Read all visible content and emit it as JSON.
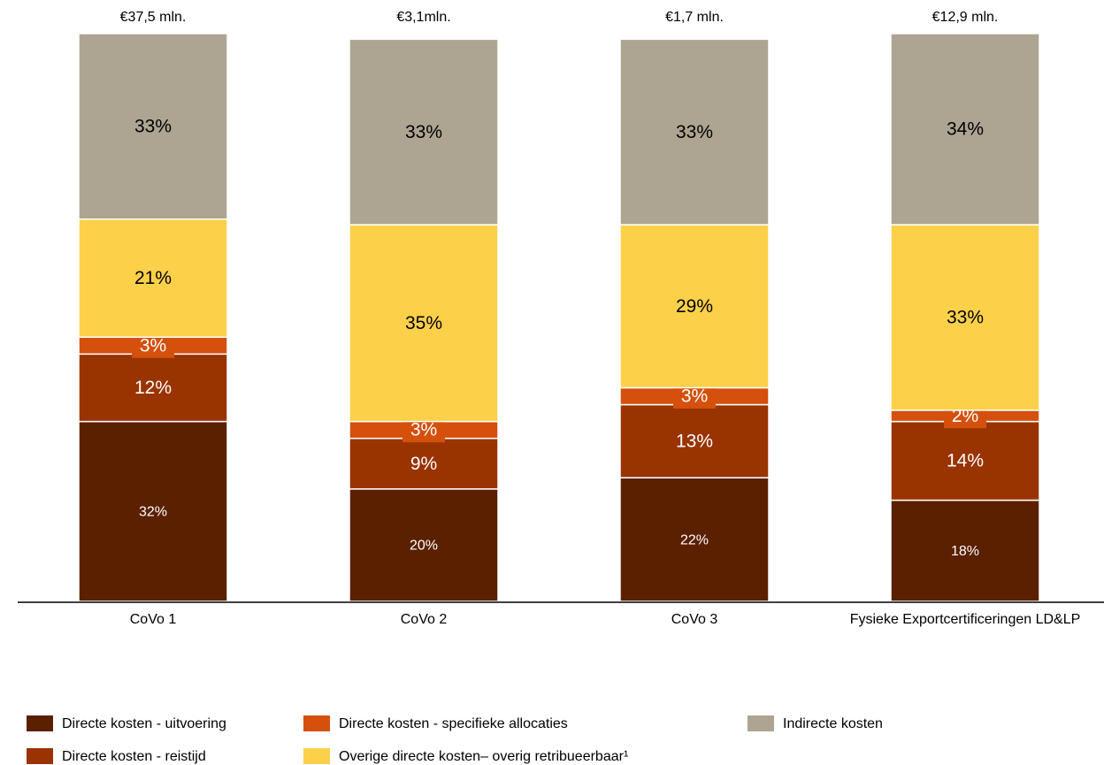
{
  "chart_data": {
    "type": "stacked_bar",
    "categories": [
      "CoVo 1",
      "CoVo 2",
      "CoVo 3",
      "Fysieke Exportcertificeringen LD&LP"
    ],
    "totals": {
      "values": [
        37.5,
        3.1,
        1.7,
        12.9
      ],
      "labels": [
        "€37,5 mln.",
        "€3,1mln.",
        "€1,7 mln.",
        "€12,9 mln."
      ]
    },
    "ylim": [
      0,
      101
    ],
    "series": [
      {
        "name": "Directe kosten - uitvoering",
        "color": "#5a2000",
        "values": [
          32,
          20,
          22,
          18
        ],
        "value_labels": [
          "32%",
          "20%",
          "22%",
          "18%"
        ]
      },
      {
        "name": "Directe kosten - reistijd",
        "color": "#993300",
        "values": [
          12,
          9,
          13,
          14
        ],
        "value_labels": [
          "12%",
          "9%",
          "13%",
          "14%"
        ]
      },
      {
        "name": "Directe kosten - specifieke allocaties",
        "color": "#d4500c",
        "values": [
          3,
          3,
          3,
          2
        ],
        "value_labels": [
          "3%",
          "3%",
          "3%",
          "2%"
        ]
      },
      {
        "name": "Overige directe kosten– overig retribueerbaar¹",
        "color": "#fdd04a",
        "values": [
          21,
          35,
          29,
          33
        ],
        "value_labels": [
          "21%",
          "35%",
          "29%",
          "33%"
        ]
      },
      {
        "name": "Indirecte kosten",
        "color": "#ada592",
        "values": [
          33,
          33,
          33,
          34
        ],
        "value_labels": [
          "33%",
          "33%",
          "33%",
          "34%"
        ]
      }
    ]
  }
}
